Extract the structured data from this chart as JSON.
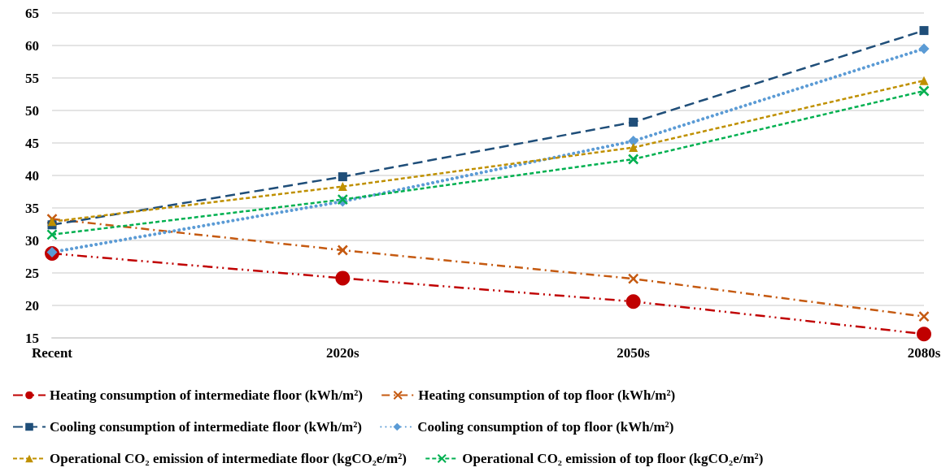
{
  "chart_data": {
    "type": "line",
    "categories": [
      "Recent",
      "2020s",
      "2050s",
      "2080s"
    ],
    "ylim": [
      15,
      65
    ],
    "yticks": [
      15,
      20,
      25,
      30,
      35,
      40,
      45,
      50,
      55,
      60,
      65
    ],
    "grid": "y",
    "legend": "bottom",
    "series": [
      {
        "name": "Heating consumption of intermediate floor (kWh/m²)",
        "color": "#c00000",
        "marker": "circle",
        "line_style": "dashdotdot",
        "values": [
          28,
          24.2,
          20.6,
          15.6
        ]
      },
      {
        "name": "Heating consumption of top floor (kWh/m²)",
        "color": "#c55a11",
        "marker": "cross",
        "line_style": "dashdot",
        "values": [
          33.3,
          28.5,
          24.1,
          18.3
        ]
      },
      {
        "name": "Cooling consumption of intermediate floor (kWh/m²)",
        "color": "#1f4e79",
        "marker": "square",
        "line_style": "longdash",
        "values": [
          32.4,
          39.8,
          48.2,
          62.3
        ]
      },
      {
        "name": "Cooling consumption of top floor (kWh/m²)",
        "color": "#5b9bd5",
        "marker": "diamond",
        "line_style": "dotted",
        "values": [
          28.2,
          36.0,
          45.3,
          59.5
        ]
      },
      {
        "name": "Operational CO₂ emission of intermediate floor (kgCO₂e/m²)",
        "color": "#bf9000",
        "marker": "triangle",
        "line_style": "dashed",
        "values": [
          32.9,
          38.3,
          44.3,
          54.6
        ]
      },
      {
        "name": "Operational CO₂ emission of top floor (kgCO₂e/m²)",
        "color": "#00b050",
        "marker": "cross",
        "line_style": "dashed",
        "values": [
          30.9,
          36.3,
          42.5,
          53.0
        ]
      }
    ]
  }
}
